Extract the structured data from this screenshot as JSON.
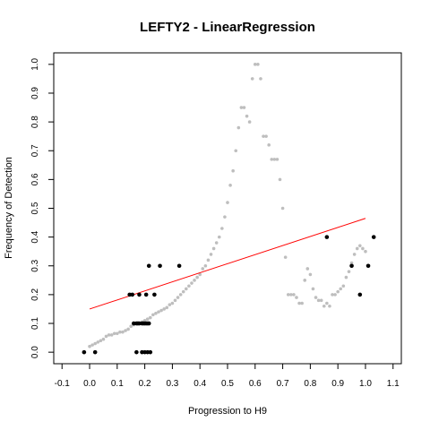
{
  "chart_data": {
    "type": "scatter",
    "title": "LEFTY2 - LinearRegression",
    "xlabel": "Progression to H9",
    "ylabel": "Frequency of Detection",
    "xlim": [
      -0.13,
      1.13
    ],
    "ylim": [
      -0.04,
      1.04
    ],
    "xticks": [
      "-0.1",
      "0.0",
      "0.1",
      "0.2",
      "0.3",
      "0.4",
      "0.5",
      "0.6",
      "0.7",
      "0.8",
      "0.9",
      "1.0",
      "1.1"
    ],
    "yticks": [
      "0.0",
      "0.1",
      "0.2",
      "0.3",
      "0.4",
      "0.5",
      "0.6",
      "0.7",
      "0.8",
      "0.9",
      "1.0"
    ],
    "grid": false,
    "colors": {
      "observed": "#000000",
      "smoothed": "#bebebe",
      "regression": "#ff0000"
    },
    "series": [
      {
        "role": "observed",
        "points": [
          [
            -0.02,
            0.0
          ],
          [
            0.02,
            0.0
          ],
          [
            0.145,
            0.2
          ],
          [
            0.155,
            0.2
          ],
          [
            0.16,
            0.1
          ],
          [
            0.17,
            0.1
          ],
          [
            0.175,
            0.1
          ],
          [
            0.18,
            0.1
          ],
          [
            0.19,
            0.1
          ],
          [
            0.195,
            0.1
          ],
          [
            0.2,
            0.1
          ],
          [
            0.205,
            0.1
          ],
          [
            0.21,
            0.1
          ],
          [
            0.215,
            0.1
          ],
          [
            0.17,
            0.0
          ],
          [
            0.19,
            0.0
          ],
          [
            0.2,
            0.0
          ],
          [
            0.21,
            0.0
          ],
          [
            0.22,
            0.0
          ],
          [
            0.18,
            0.2
          ],
          [
            0.205,
            0.2
          ],
          [
            0.235,
            0.2
          ],
          [
            0.215,
            0.3
          ],
          [
            0.255,
            0.3
          ],
          [
            0.325,
            0.3
          ],
          [
            0.86,
            0.4
          ],
          [
            0.95,
            0.3
          ],
          [
            0.98,
            0.2
          ],
          [
            1.01,
            0.3
          ],
          [
            1.03,
            0.4
          ]
        ]
      },
      {
        "role": "smoothed",
        "points": [
          [
            0.0,
            0.02
          ],
          [
            0.01,
            0.025
          ],
          [
            0.02,
            0.03
          ],
          [
            0.03,
            0.035
          ],
          [
            0.04,
            0.04
          ],
          [
            0.05,
            0.045
          ],
          [
            0.06,
            0.055
          ],
          [
            0.07,
            0.06
          ],
          [
            0.08,
            0.06
          ],
          [
            0.09,
            0.065
          ],
          [
            0.1,
            0.065
          ],
          [
            0.11,
            0.07
          ],
          [
            0.12,
            0.07
          ],
          [
            0.13,
            0.075
          ],
          [
            0.14,
            0.08
          ],
          [
            0.15,
            0.09
          ],
          [
            0.16,
            0.095
          ],
          [
            0.17,
            0.1
          ],
          [
            0.18,
            0.1
          ],
          [
            0.19,
            0.105
          ],
          [
            0.2,
            0.11
          ],
          [
            0.21,
            0.115
          ],
          [
            0.22,
            0.12
          ],
          [
            0.23,
            0.13
          ],
          [
            0.24,
            0.135
          ],
          [
            0.25,
            0.14
          ],
          [
            0.26,
            0.145
          ],
          [
            0.27,
            0.15
          ],
          [
            0.28,
            0.155
          ],
          [
            0.29,
            0.165
          ],
          [
            0.3,
            0.17
          ],
          [
            0.31,
            0.18
          ],
          [
            0.32,
            0.19
          ],
          [
            0.33,
            0.2
          ],
          [
            0.34,
            0.21
          ],
          [
            0.35,
            0.22
          ],
          [
            0.36,
            0.23
          ],
          [
            0.37,
            0.24
          ],
          [
            0.38,
            0.25
          ],
          [
            0.39,
            0.26
          ],
          [
            0.4,
            0.27
          ],
          [
            0.41,
            0.29
          ],
          [
            0.42,
            0.3
          ],
          [
            0.43,
            0.32
          ],
          [
            0.44,
            0.34
          ],
          [
            0.45,
            0.36
          ],
          [
            0.46,
            0.38
          ],
          [
            0.47,
            0.4
          ],
          [
            0.48,
            0.43
          ],
          [
            0.49,
            0.47
          ],
          [
            0.5,
            0.52
          ],
          [
            0.51,
            0.58
          ],
          [
            0.52,
            0.63
          ],
          [
            0.53,
            0.7
          ],
          [
            0.54,
            0.78
          ],
          [
            0.55,
            0.85
          ],
          [
            0.56,
            0.85
          ],
          [
            0.57,
            0.82
          ],
          [
            0.58,
            0.8
          ],
          [
            0.59,
            0.95
          ],
          [
            0.6,
            1.0
          ],
          [
            0.61,
            1.0
          ],
          [
            0.62,
            0.95
          ],
          [
            0.63,
            0.75
          ],
          [
            0.64,
            0.75
          ],
          [
            0.65,
            0.72
          ],
          [
            0.66,
            0.67
          ],
          [
            0.67,
            0.67
          ],
          [
            0.68,
            0.67
          ],
          [
            0.69,
            0.6
          ],
          [
            0.7,
            0.5
          ],
          [
            0.71,
            0.33
          ],
          [
            0.72,
            0.2
          ],
          [
            0.73,
            0.2
          ],
          [
            0.74,
            0.2
          ],
          [
            0.75,
            0.19
          ],
          [
            0.76,
            0.17
          ],
          [
            0.77,
            0.17
          ],
          [
            0.78,
            0.25
          ],
          [
            0.79,
            0.29
          ],
          [
            0.8,
            0.27
          ],
          [
            0.81,
            0.22
          ],
          [
            0.82,
            0.19
          ],
          [
            0.83,
            0.18
          ],
          [
            0.84,
            0.18
          ],
          [
            0.85,
            0.16
          ],
          [
            0.86,
            0.17
          ],
          [
            0.87,
            0.16
          ],
          [
            0.88,
            0.2
          ],
          [
            0.89,
            0.2
          ],
          [
            0.9,
            0.21
          ],
          [
            0.91,
            0.22
          ],
          [
            0.92,
            0.23
          ],
          [
            0.93,
            0.26
          ],
          [
            0.94,
            0.28
          ],
          [
            0.95,
            0.31
          ],
          [
            0.96,
            0.34
          ],
          [
            0.97,
            0.36
          ],
          [
            0.98,
            0.37
          ],
          [
            0.99,
            0.36
          ],
          [
            1.0,
            0.35
          ]
        ]
      }
    ],
    "regression_line": {
      "x": [
        0.0,
        1.0
      ],
      "y": [
        0.15,
        0.465
      ]
    }
  }
}
